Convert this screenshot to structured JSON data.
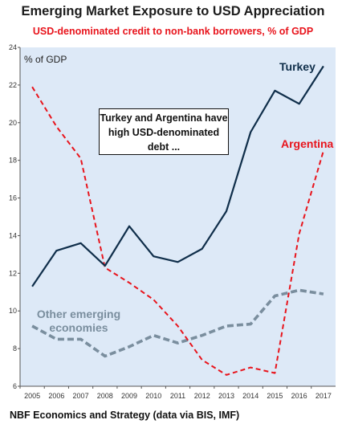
{
  "title": "Emerging Market Exposure to USD Appreciation",
  "subtitle": "USD-denominated credit to non-bank borrowers, % of GDP",
  "footer": "NBF Economics and Strategy (data via BIS, IMF)",
  "callout": "Turkey and Argentina have high USD-denominated debt ...",
  "colors": {
    "background": "#dde9f7",
    "turkey": "#0f2e4a",
    "argentina": "#e8141c",
    "other": "#7a8e9e"
  },
  "chart_data": {
    "type": "line",
    "ylabel": "% of GDP",
    "ylim": [
      6,
      24
    ],
    "yticks": [
      6,
      8,
      10,
      12,
      14,
      16,
      18,
      20,
      22,
      24
    ],
    "grid": false,
    "x": [
      "2005",
      "2006",
      "2007",
      "2008",
      "2009",
      "2010",
      "2011",
      "2012",
      "2013",
      "2014",
      "2015",
      "2016",
      "2017"
    ],
    "series": [
      {
        "name": "Turkey",
        "style": "solid",
        "values": [
          11.3,
          13.2,
          13.6,
          12.4,
          14.5,
          12.9,
          12.6,
          13.3,
          15.3,
          19.5,
          21.7,
          21.0,
          23.0
        ]
      },
      {
        "name": "Argentina",
        "style": "dashed",
        "values": [
          21.9,
          19.8,
          18.1,
          12.3,
          11.5,
          10.6,
          9.2,
          7.4,
          6.6,
          7.0,
          6.7,
          14.1,
          18.5
        ]
      },
      {
        "name": "Other emerging economies",
        "style": "thick-dashed",
        "values": [
          9.2,
          8.5,
          8.5,
          7.6,
          8.1,
          8.7,
          8.3,
          8.7,
          9.2,
          9.3,
          10.8,
          11.1,
          10.9
        ]
      }
    ]
  }
}
